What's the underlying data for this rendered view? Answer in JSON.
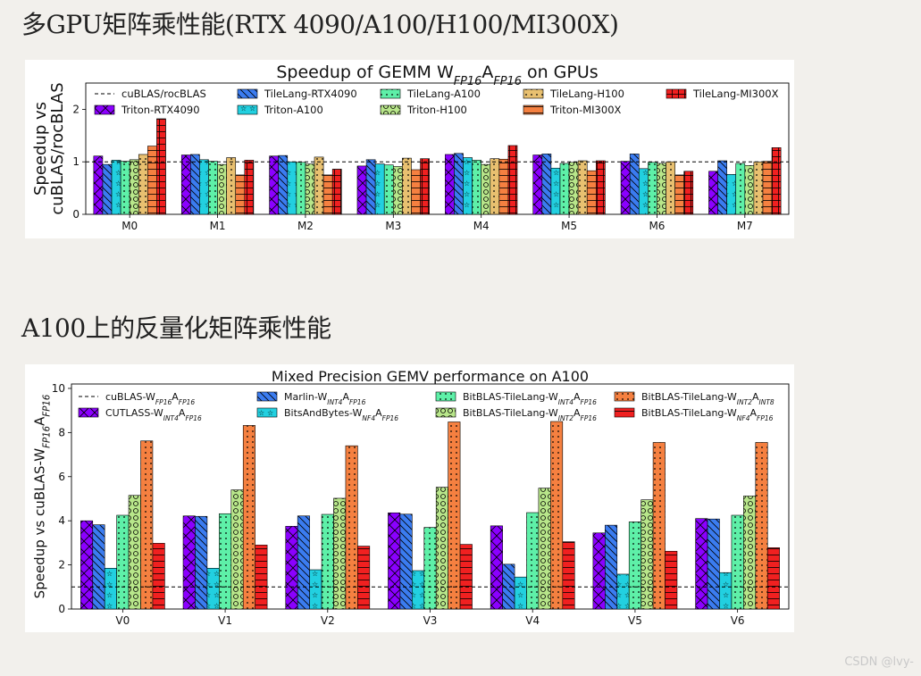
{
  "page": {
    "heading1": "多GPU矩阵乘性能(RTX 4090/A100/H100/MI300X)",
    "heading2": "A100上的反量化矩阵乘性能",
    "watermark": "CSDN @lvy-"
  },
  "chart_data": [
    {
      "type": "bar",
      "title_parts": [
        [
          "Speedup of GEMM W",
          ""
        ],
        [
          "FP16",
          "sub"
        ],
        [
          "A",
          ""
        ],
        [
          "FP16",
          "sub"
        ],
        [
          " on GPUs",
          ""
        ]
      ],
      "ylabel": [
        "Speedup vs",
        "cuBLAS/rocBLAS"
      ],
      "ylim": [
        0,
        2.5
      ],
      "yticks": [
        0,
        1,
        2
      ],
      "categories": [
        "M0",
        "M1",
        "M2",
        "M3",
        "M4",
        "M5",
        "M6",
        "M7"
      ],
      "baseline": {
        "value": 1.0,
        "label": [
          [
            "cuBLAS/rocBLAS",
            ""
          ]
        ]
      },
      "legend_cols": 5,
      "series": [
        {
          "label": [
            [
              "Triton-RTX4090",
              ""
            ]
          ],
          "color": "#8b00ff",
          "hatch": "cross",
          "values": [
            1.11,
            1.13,
            1.11,
            0.92,
            1.14,
            1.13,
            1.01,
            0.82
          ]
        },
        {
          "label": [
            [
              "TileLang-RTX4090",
              ""
            ]
          ],
          "color": "#3b7cf0",
          "hatch": "back",
          "values": [
            0.95,
            1.14,
            1.12,
            1.04,
            1.16,
            1.15,
            1.15,
            1.02
          ]
        },
        {
          "label": [
            [
              "Triton-A100",
              ""
            ]
          ],
          "color": "#22d0e0",
          "hatch": "star",
          "values": [
            1.03,
            1.04,
            1.0,
            0.96,
            1.08,
            0.88,
            0.87,
            0.76
          ]
        },
        {
          "label": [
            [
              "TileLang-A100",
              ""
            ]
          ],
          "color": "#5ef0a8",
          "hatch": "dots",
          "values": [
            1.01,
            1.01,
            0.99,
            0.94,
            1.03,
            0.97,
            0.99,
            0.97
          ]
        },
        {
          "label": [
            [
              "Triton-H100",
              ""
            ]
          ],
          "color": "#b8e68a",
          "hatch": "circles",
          "values": [
            1.04,
            0.95,
            0.96,
            0.91,
            0.95,
            0.99,
            0.97,
            0.93
          ]
        },
        {
          "label": [
            [
              "TileLang-H100",
              ""
            ]
          ],
          "color": "#e8c070",
          "hatch": "dots",
          "values": [
            1.14,
            1.08,
            1.09,
            1.07,
            1.06,
            1.02,
            1.0,
            1.0
          ]
        },
        {
          "label": [
            [
              "Triton-MI300X",
              ""
            ]
          ],
          "color": "#f58040",
          "hatch": "hline",
          "values": [
            1.3,
            0.75,
            0.75,
            0.85,
            1.05,
            0.83,
            0.75,
            1.01
          ]
        },
        {
          "label": [
            [
              "TileLang-MI300X",
              ""
            ]
          ],
          "color": "#f02020",
          "hatch": "grid",
          "values": [
            1.82,
            1.03,
            0.86,
            1.06,
            1.31,
            1.02,
            0.82,
            1.27
          ]
        }
      ],
      "grid": false,
      "legend_position": "top"
    },
    {
      "type": "bar",
      "title_parts": [
        [
          "Mixed Precision GEMV performance on A100",
          ""
        ]
      ],
      "ylabel": [
        [
          [
            "Speedup vs cuBLAS-W",
            ""
          ],
          [
            "FP16",
            "sub"
          ],
          [
            "A",
            ""
          ],
          [
            "FP16",
            "sub"
          ]
        ]
      ],
      "ylim": [
        0,
        10.2
      ],
      "yticks": [
        0,
        2,
        4,
        6,
        8,
        10
      ],
      "categories": [
        "V0",
        "V1",
        "V2",
        "V3",
        "V4",
        "V5",
        "V6"
      ],
      "baseline": {
        "value": 1.0,
        "label": [
          [
            "cuBLAS-W",
            ""
          ],
          [
            "FP16",
            "sub"
          ],
          [
            "A",
            ""
          ],
          [
            "FP16",
            "sub"
          ]
        ]
      },
      "legend_cols": 4,
      "series": [
        {
          "label": [
            [
              "CUTLASS-W",
              ""
            ],
            [
              "INT4",
              "sub"
            ],
            [
              "A",
              ""
            ],
            [
              "FP16",
              "sub"
            ]
          ],
          "color": "#8b00ff",
          "hatch": "cross",
          "values": [
            4.0,
            4.22,
            3.75,
            4.36,
            3.77,
            3.45,
            4.1
          ]
        },
        {
          "label": [
            [
              "Marlin-W",
              ""
            ],
            [
              "INT4",
              "sub"
            ],
            [
              "A",
              ""
            ],
            [
              "FP16",
              "sub"
            ]
          ],
          "color": "#3b7cf0",
          "hatch": "back",
          "values": [
            3.82,
            4.2,
            4.22,
            4.3,
            2.03,
            3.8,
            4.08
          ]
        },
        {
          "label": [
            [
              "BitsAndBytes-W",
              ""
            ],
            [
              "NF4",
              "sub"
            ],
            [
              "A",
              ""
            ],
            [
              "FP16",
              "sub"
            ]
          ],
          "color": "#22d0e0",
          "hatch": "star",
          "values": [
            1.85,
            1.85,
            1.78,
            1.74,
            1.45,
            1.58,
            1.65
          ]
        },
        {
          "label": [
            [
              "BitBLAS-TileLang-W",
              ""
            ],
            [
              "INT4",
              "sub"
            ],
            [
              "A",
              ""
            ],
            [
              "FP16",
              "sub"
            ]
          ],
          "color": "#5ef0a8",
          "hatch": "dots",
          "values": [
            4.25,
            4.32,
            4.29,
            3.7,
            4.37,
            3.95,
            4.25
          ]
        },
        {
          "label": [
            [
              "BitBLAS-TileLang-W",
              ""
            ],
            [
              "INT2",
              "sub"
            ],
            [
              "A",
              ""
            ],
            [
              "FP16",
              "sub"
            ]
          ],
          "color": "#b8e68a",
          "hatch": "circles",
          "values": [
            5.15,
            5.4,
            5.02,
            5.52,
            5.48,
            4.95,
            5.12
          ]
        },
        {
          "label": [
            [
              "BitBLAS-TileLang-W",
              ""
            ],
            [
              "INT2",
              "sub"
            ],
            [
              "A",
              ""
            ],
            [
              "INT8",
              "sub"
            ]
          ],
          "color": "#f58040",
          "hatch": "dots",
          "values": [
            7.62,
            8.32,
            7.4,
            8.48,
            8.5,
            7.55,
            7.55
          ]
        },
        {
          "label": [
            [
              "BitBLAS-TileLang-W",
              ""
            ],
            [
              "NF4",
              "sub"
            ],
            [
              "A",
              ""
            ],
            [
              "FP16",
              "sub"
            ]
          ],
          "color": "#f02020",
          "hatch": "hline",
          "values": [
            2.98,
            2.9,
            2.85,
            2.93,
            3.05,
            2.62,
            2.78
          ]
        }
      ],
      "grid": false,
      "legend_position": "top"
    }
  ]
}
